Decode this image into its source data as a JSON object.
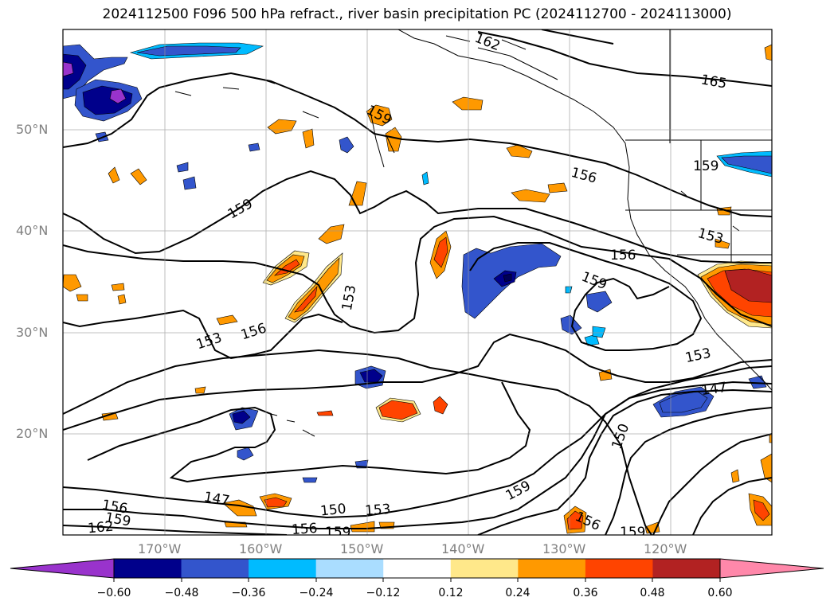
{
  "title": "2024112500 F096 500 hPa refract., river basin precipitation PC (2024112700 - 2024113000)",
  "latitude_labels": [
    "50°N",
    "40°N",
    "30°N",
    "20°N"
  ],
  "longitude_labels": [
    "170°W",
    "160°W",
    "150°W",
    "140°W",
    "130°W",
    "120°W"
  ],
  "contour_labels": [
    "162",
    "165",
    "159",
    "159",
    "159",
    "156",
    "153",
    "156",
    "159",
    "153",
    "153",
    "156",
    "153",
    "147",
    "150",
    "147",
    "156",
    "159",
    "162",
    "150",
    "153",
    "156",
    "159",
    "159",
    "156",
    "159"
  ],
  "colorbar": {
    "tick_labels": [
      "−0.60",
      "−0.48",
      "−0.36",
      "−0.24",
      "−0.12",
      "0.12",
      "0.24",
      "0.36",
      "0.48",
      "0.60"
    ],
    "colors": {
      "under": "#9933cc",
      "bins": [
        "#00008b",
        "#3355cc",
        "#00bbff",
        "#aaddff",
        "#ffffff",
        "#ffe88a",
        "#ff9900",
        "#ff4400",
        "#b22222"
      ],
      "over": "#ff88aa"
    }
  }
}
